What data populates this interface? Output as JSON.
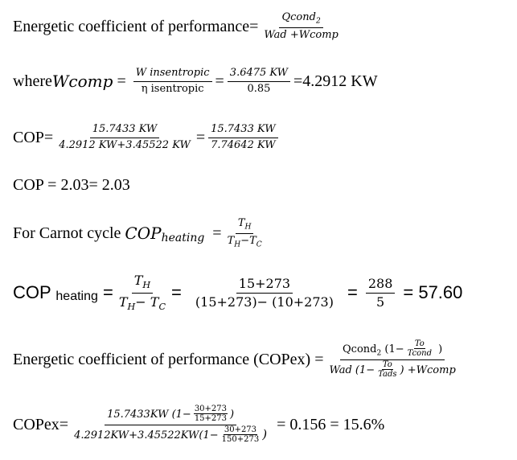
{
  "eq1": {
    "label": "Energetic coefficient of performance=",
    "num": "Qcond",
    "num_sub": "2",
    "den": "Wad +Wcomp"
  },
  "eq2": {
    "label": "where",
    "var": "Wcomp",
    "eq1": " = ",
    "num1": "W insentropic",
    "den1": "η isentropic",
    "eq2": "=",
    "num2": "3.6475 KW",
    "den2": "0.85",
    "result": "=4.2912 KW"
  },
  "eq3": {
    "label": "COP=",
    "num1": "15.7433 KW",
    "den1": "4.2912 KW+3.45522 KW",
    "eq": "=",
    "num2": "15.7433 KW",
    "den2": "7.74642 KW"
  },
  "eq4": {
    "text": "COP = 2.03= 2.03"
  },
  "eq5": {
    "label": "For Carnot cycle ",
    "var": "COP",
    "var_sub": "heating",
    "eq": "  =",
    "num": "T",
    "num_sub": "H",
    "den1": "T",
    "den1_sub": "H",
    "den2": "−T",
    "den2_sub": "C"
  },
  "eq6": {
    "label": "COP ",
    "label_sub": "heating",
    "eq1": " =",
    "num1": "T",
    "num1_sub": "H",
    "den1a": "T",
    "den1a_sub": "H",
    "den1b": "− T",
    "den1b_sub": "C",
    "eq2": "=",
    "num2": "15+273",
    "den2": "(15+273)− (10+273)",
    "eq3": "=",
    "num3": "288",
    "den3": "5",
    "result": "= 57.60"
  },
  "eq7": {
    "label": "Energetic coefficient of performance (COPex) =",
    "num": "Qcond",
    "num_sub": "2",
    "num_open": " (1−",
    "num_inner_num": "To",
    "num_inner_den": "Tcond",
    "num_close": " )",
    "den": "Wad (1−",
    "den_inner_num": "To",
    "den_inner_den": "Tads",
    "den_close": ") +Wcomp"
  },
  "eq8": {
    "label": "COPex=",
    "num": "15.7433KW (1−",
    "num_inner_num": "30+273",
    "num_inner_den": "15+273",
    "num_close": ")",
    "den": "4.2912KW+3.45522KW(1−",
    "den_inner_num": "30+273",
    "den_inner_den": "150+273",
    "den_close": ")",
    "result": " = 0.156 = 15.6%"
  }
}
